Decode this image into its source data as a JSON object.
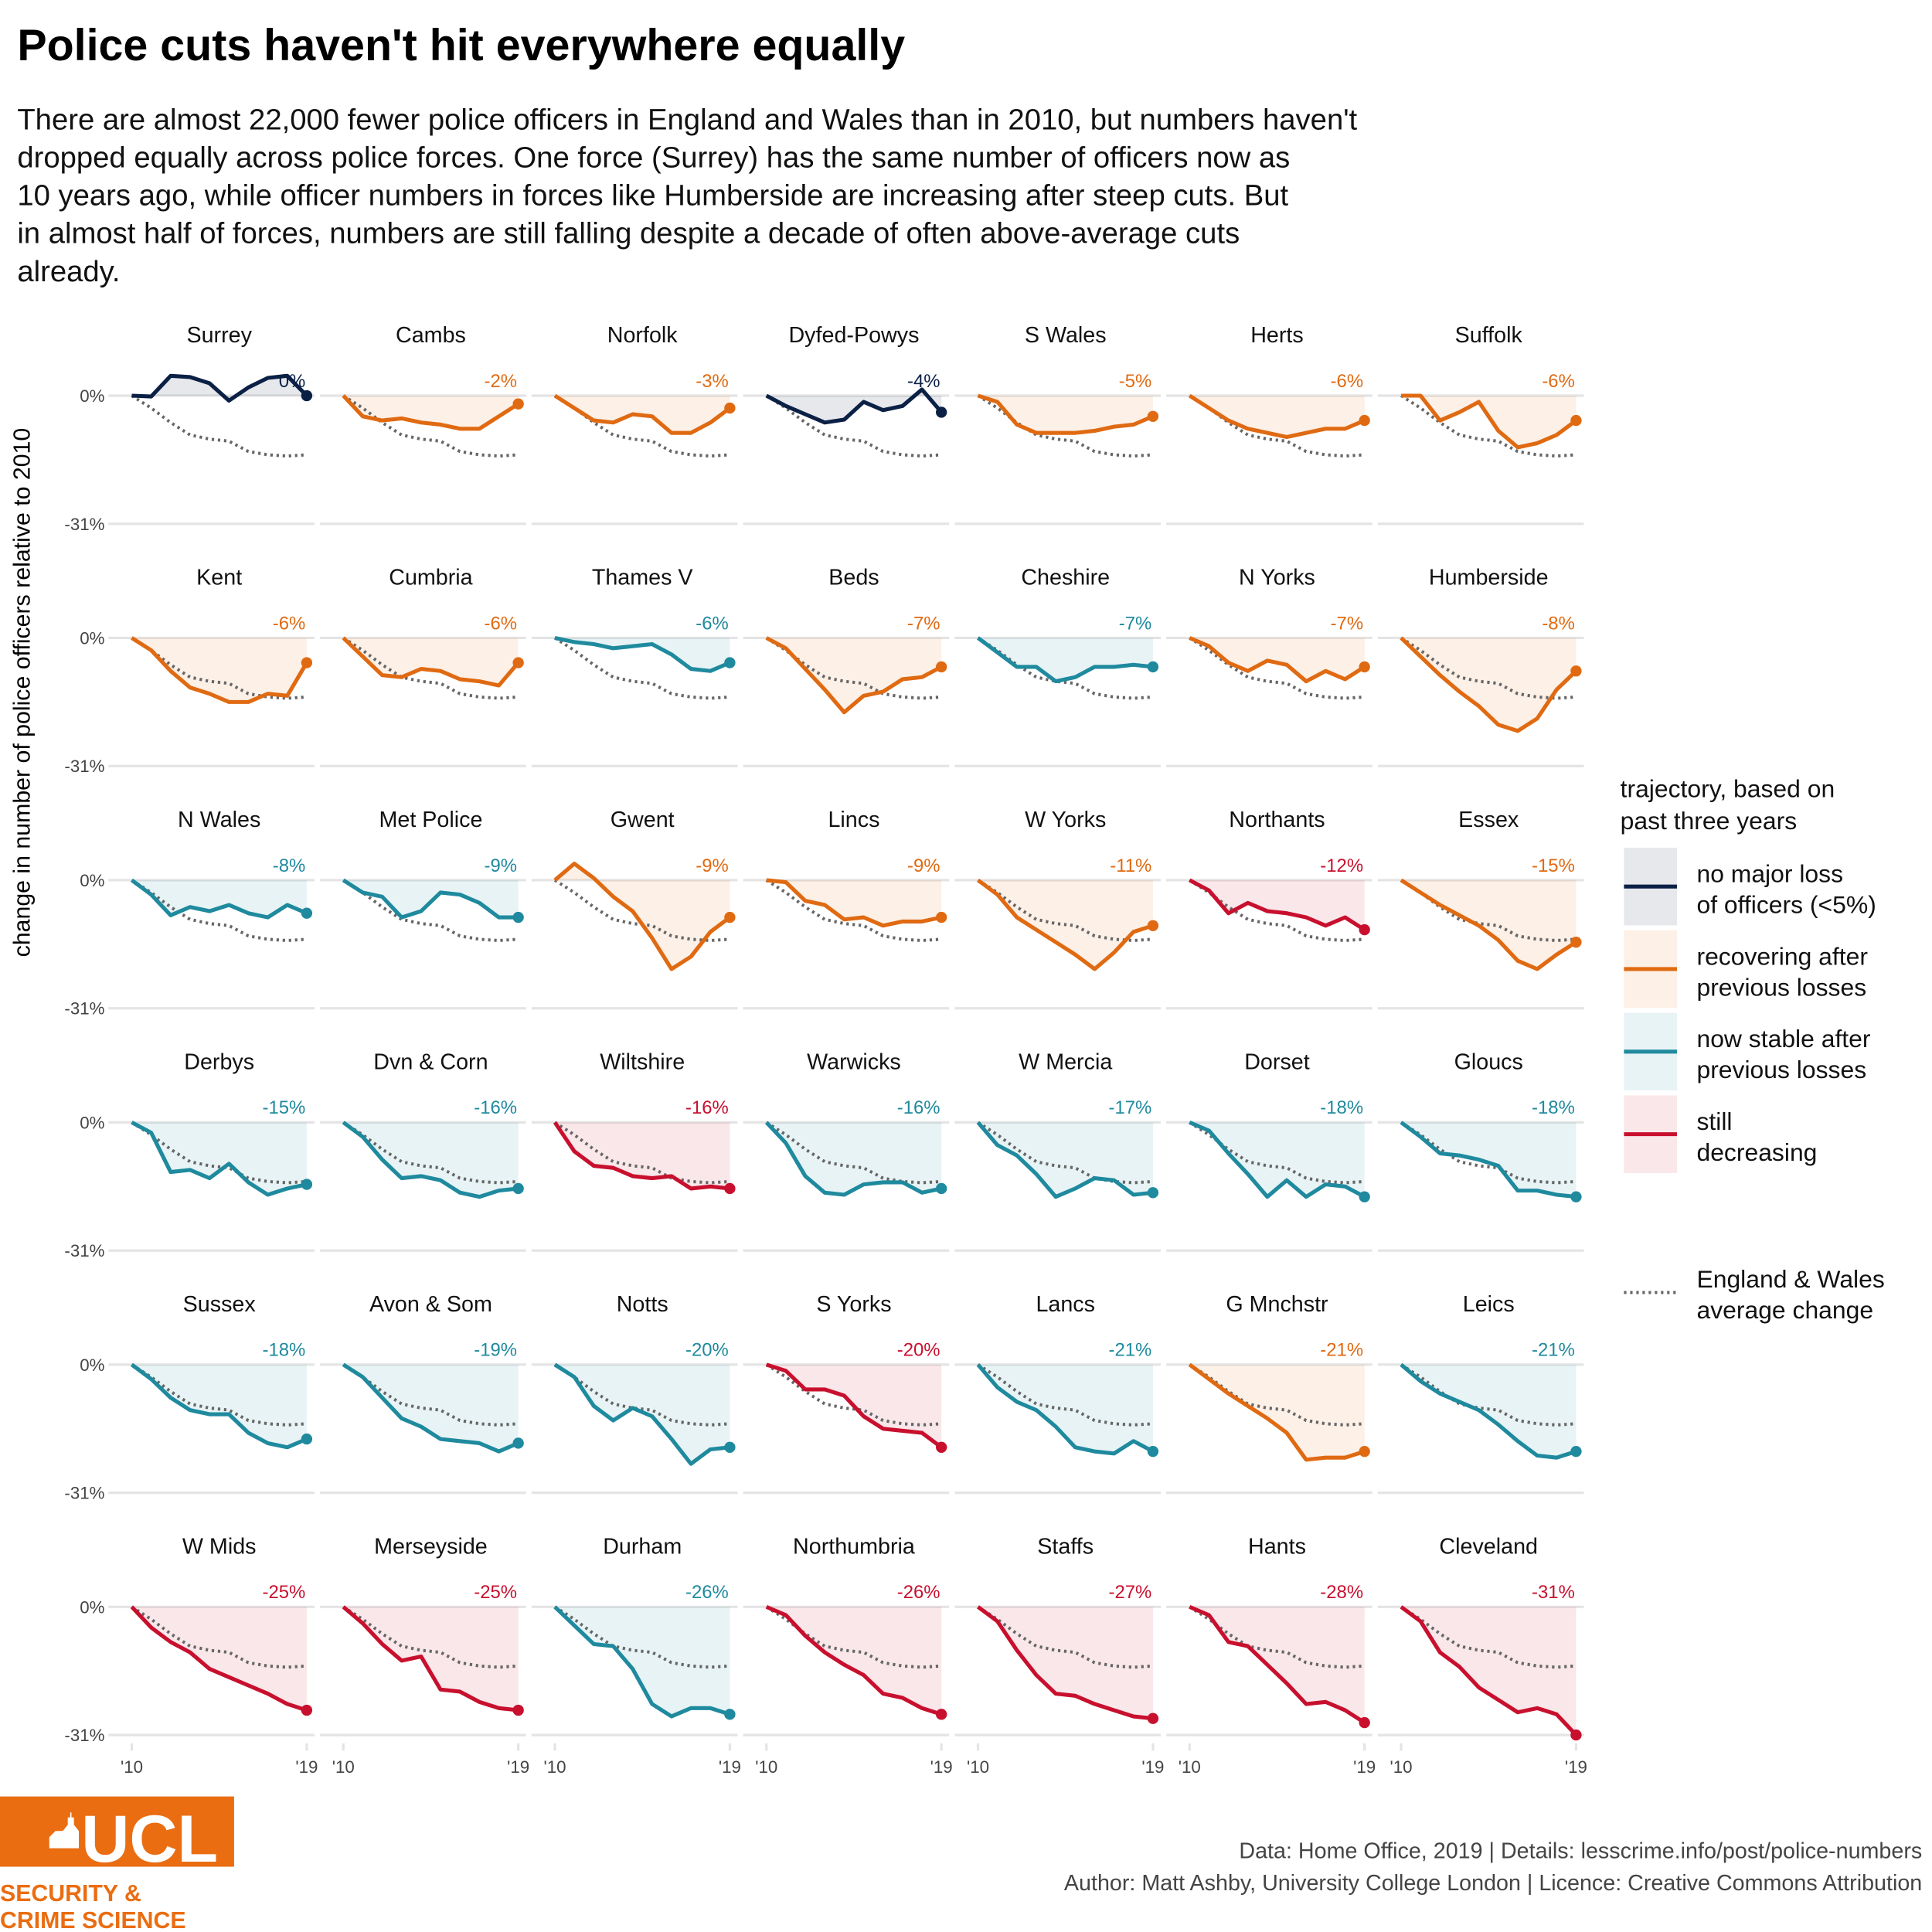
{
  "chart_data": {
    "type": "line",
    "title": "Police cuts haven't hit everywhere equally",
    "subtitle": [
      "There are almost 22,000 fewer police officers in England and Wales than in 2010, but numbers haven't",
      "dropped equally across police forces. One force (Surrey) has the same number of officers now as",
      "10 years ago, while officer numbers in forces like Humberside are increasing after steep cuts. But",
      "in almost half of forces, numbers are still falling despite a decade of often above-average cuts",
      "already."
    ],
    "y_label": "change in number of police officers relative to 2010",
    "x": [
      2010,
      2011,
      2012,
      2013,
      2014,
      2015,
      2016,
      2017,
      2018,
      2019
    ],
    "xlim": [
      2008.8,
      2019.4
    ],
    "xticks": [
      {
        "value": 2010,
        "label": "'10"
      },
      {
        "value": 2019,
        "label": "'19"
      }
    ],
    "ylim": [
      -33,
      6
    ],
    "yticks": [
      {
        "value": 0,
        "label": "0%"
      },
      {
        "value": -31,
        "label": "-31%"
      }
    ],
    "grid": true,
    "average": {
      "name": [
        "England & Wales",
        "average change"
      ],
      "color": "#666666",
      "values": [
        0,
        -3,
        -6.5,
        -9.5,
        -10.5,
        -11,
        -13.5,
        -14.3,
        -14.6,
        -14.3
      ]
    },
    "legend_title": [
      "trajectory, based on",
      "past three years"
    ],
    "legend": [
      {
        "name": [
          "no major loss",
          "of officers (<5%)"
        ],
        "color": "#0b2045"
      },
      {
        "name": [
          "recovering after",
          "previous losses"
        ],
        "color": "#e06a12"
      },
      {
        "name": [
          "now stable after",
          "previous losses"
        ],
        "color": "#1f8a9e"
      },
      {
        "name": [
          "still",
          "decreasing"
        ],
        "color": "#c8102e"
      }
    ],
    "panels": [
      {
        "title": "Surrey",
        "color": "#0b2045",
        "value_label": "0%",
        "values": [
          0,
          -0.2,
          4.8,
          4.5,
          3,
          -1.2,
          2,
          4.3,
          4.8,
          0
        ]
      },
      {
        "title": "Cambs",
        "color": "#e06a12",
        "value_label": "-2%",
        "values": [
          0,
          -5,
          -6,
          -5.5,
          -6.5,
          -7,
          -8,
          -8,
          -5,
          -2
        ]
      },
      {
        "title": "Norfolk",
        "color": "#e06a12",
        "value_label": "-3%",
        "values": [
          0,
          -3,
          -6,
          -6.5,
          -4.5,
          -5,
          -9,
          -9,
          -6.5,
          -3
        ]
      },
      {
        "title": "Dyfed-Powys",
        "color": "#0b2045",
        "value_label": "-4%",
        "values": [
          0,
          -2.5,
          -4.5,
          -6.5,
          -5.8,
          -1.5,
          -3.5,
          -2.5,
          1.5,
          -4
        ]
      },
      {
        "title": "S Wales",
        "color": "#e06a12",
        "value_label": "-5%",
        "values": [
          0,
          -1.5,
          -7,
          -9,
          -9,
          -9,
          -8.5,
          -7.5,
          -7,
          -5
        ]
      },
      {
        "title": "Herts",
        "color": "#e06a12",
        "value_label": "-6%",
        "values": [
          0,
          -3,
          -6,
          -8,
          -9,
          -10,
          -9,
          -8,
          -8,
          -6
        ]
      },
      {
        "title": "Suffolk",
        "color": "#e06a12",
        "value_label": "-6%",
        "values": [
          0,
          0,
          -6,
          -4,
          -1.5,
          -8.5,
          -12.5,
          -11.5,
          -9.5,
          -6
        ]
      },
      {
        "title": "Kent",
        "color": "#e06a12",
        "value_label": "-6%",
        "values": [
          0,
          -3,
          -8,
          -12,
          -13.5,
          -15.5,
          -15.5,
          -13.5,
          -14,
          -6
        ]
      },
      {
        "title": "Cumbria",
        "color": "#e06a12",
        "value_label": "-6%",
        "values": [
          0,
          -4.5,
          -9,
          -9.5,
          -7.5,
          -8,
          -10,
          -10.5,
          -11.5,
          -6
        ]
      },
      {
        "title": "Thames V",
        "color": "#1f8a9e",
        "value_label": "-6%",
        "values": [
          0,
          -1,
          -1.5,
          -2.5,
          -2,
          -1.5,
          -4,
          -7.5,
          -8,
          -6
        ]
      },
      {
        "title": "Beds",
        "color": "#e06a12",
        "value_label": "-7%",
        "values": [
          0,
          -2.5,
          -7.5,
          -12.5,
          -18,
          -14,
          -13,
          -10,
          -9.5,
          -7
        ]
      },
      {
        "title": "Cheshire",
        "color": "#1f8a9e",
        "value_label": "-7%",
        "values": [
          0,
          -3.5,
          -7,
          -7,
          -10.5,
          -9.5,
          -7,
          -7,
          -6.5,
          -7
        ]
      },
      {
        "title": "N Yorks",
        "color": "#e06a12",
        "value_label": "-7%",
        "values": [
          0,
          -2,
          -6,
          -8,
          -5.5,
          -6.5,
          -10.5,
          -8,
          -10,
          -7
        ]
      },
      {
        "title": "Humberside",
        "color": "#e06a12",
        "value_label": "-8%",
        "values": [
          0,
          -4.5,
          -9,
          -13,
          -16.5,
          -21,
          -22.5,
          -19.5,
          -12.5,
          -8
        ]
      },
      {
        "title": "N Wales",
        "color": "#1f8a9e",
        "value_label": "-8%",
        "values": [
          0,
          -3.5,
          -8.5,
          -6.5,
          -7.5,
          -6,
          -8,
          -9,
          -6,
          -8
        ]
      },
      {
        "title": "Met Police",
        "color": "#1f8a9e",
        "value_label": "-9%",
        "values": [
          0,
          -3,
          -4,
          -9,
          -7.5,
          -3,
          -3.5,
          -5.5,
          -9,
          -9
        ]
      },
      {
        "title": "Gwent",
        "color": "#e06a12",
        "value_label": "-9%",
        "values": [
          0,
          4,
          0.5,
          -4,
          -7.5,
          -14,
          -21.5,
          -18.5,
          -12.5,
          -9
        ]
      },
      {
        "title": "Lincs",
        "color": "#e06a12",
        "value_label": "-9%",
        "values": [
          0,
          -0.5,
          -5,
          -6,
          -9.5,
          -9,
          -11,
          -10,
          -10,
          -9
        ]
      },
      {
        "title": "W Yorks",
        "color": "#e06a12",
        "value_label": "-11%",
        "values": [
          0,
          -3.5,
          -9,
          -12,
          -15,
          -18,
          -21.5,
          -17.5,
          -12.5,
          -11
        ]
      },
      {
        "title": "Northants",
        "color": "#c8102e",
        "value_label": "-12%",
        "values": [
          0,
          -2.5,
          -8,
          -5.5,
          -7.5,
          -8,
          -9,
          -11,
          -9,
          -12
        ]
      },
      {
        "title": "Essex",
        "color": "#e06a12",
        "value_label": "-15%",
        "values": [
          0,
          -3,
          -6,
          -8.5,
          -11,
          -14.5,
          -19.5,
          -21.5,
          -18,
          -15
        ]
      },
      {
        "title": "Derbys",
        "color": "#1f8a9e",
        "value_label": "-15%",
        "values": [
          0,
          -2.5,
          -12,
          -11.5,
          -13.5,
          -10,
          -14.5,
          -17.5,
          -16,
          -15
        ]
      },
      {
        "title": "Dvn & Corn",
        "color": "#1f8a9e",
        "value_label": "-16%",
        "values": [
          0,
          -3.5,
          -9,
          -13.5,
          -13,
          -14,
          -17,
          -18,
          -16.5,
          -16
        ]
      },
      {
        "title": "Wiltshire",
        "color": "#c8102e",
        "value_label": "-16%",
        "values": [
          0,
          -7,
          -10.5,
          -11,
          -13,
          -13.5,
          -13,
          -16,
          -15.5,
          -16
        ]
      },
      {
        "title": "Warwicks",
        "color": "#1f8a9e",
        "value_label": "-16%",
        "values": [
          0,
          -5,
          -13,
          -17,
          -17.5,
          -15,
          -14.5,
          -14.5,
          -17,
          -16
        ]
      },
      {
        "title": "W Mercia",
        "color": "#1f8a9e",
        "value_label": "-17%",
        "values": [
          0,
          -5.5,
          -8,
          -12.5,
          -18,
          -16,
          -13.5,
          -14,
          -17.5,
          -17
        ]
      },
      {
        "title": "Dorset",
        "color": "#1f8a9e",
        "value_label": "-18%",
        "values": [
          0,
          -2,
          -7.5,
          -12.5,
          -18,
          -14,
          -18,
          -15,
          -15.5,
          -18
        ]
      },
      {
        "title": "Gloucs",
        "color": "#1f8a9e",
        "value_label": "-18%",
        "values": [
          0,
          -3.5,
          -7.5,
          -8,
          -9,
          -10.5,
          -16.5,
          -16.5,
          -17.5,
          -18
        ]
      },
      {
        "title": "Sussex",
        "color": "#1f8a9e",
        "value_label": "-18%",
        "values": [
          0,
          -3.5,
          -8,
          -11,
          -12,
          -12,
          -16.5,
          -19,
          -20,
          -18
        ]
      },
      {
        "title": "Avon & Som",
        "color": "#1f8a9e",
        "value_label": "-19%",
        "values": [
          0,
          -3,
          -8,
          -13,
          -15,
          -18,
          -18.5,
          -19,
          -21,
          -19
        ]
      },
      {
        "title": "Notts",
        "color": "#1f8a9e",
        "value_label": "-20%",
        "values": [
          0,
          -3,
          -10,
          -13.5,
          -10.5,
          -12.5,
          -18,
          -24,
          -20.5,
          -20
        ]
      },
      {
        "title": "S Yorks",
        "color": "#c8102e",
        "value_label": "-20%",
        "values": [
          0,
          -1.5,
          -6,
          -6,
          -7.5,
          -12.5,
          -15.5,
          -16,
          -16.5,
          -20
        ]
      },
      {
        "title": "Lancs",
        "color": "#1f8a9e",
        "value_label": "-21%",
        "values": [
          0,
          -5.5,
          -9,
          -11,
          -15,
          -20,
          -21,
          -21.5,
          -18.5,
          -21
        ]
      },
      {
        "title": "G Mnchstr",
        "color": "#e06a12",
        "value_label": "-21%",
        "values": [
          0,
          -3.5,
          -7,
          -10,
          -13,
          -16.5,
          -23,
          -22.5,
          -22.5,
          -21
        ]
      },
      {
        "title": "Leics",
        "color": "#1f8a9e",
        "value_label": "-21%",
        "values": [
          0,
          -4,
          -7,
          -9,
          -11,
          -14.5,
          -18.5,
          -22,
          -22.5,
          -21
        ]
      },
      {
        "title": "W Mids",
        "color": "#c8102e",
        "value_label": "-25%",
        "values": [
          0,
          -5,
          -8.5,
          -11,
          -15,
          -17,
          -19,
          -21,
          -23.5,
          -25
        ]
      },
      {
        "title": "Merseyside",
        "color": "#c8102e",
        "value_label": "-25%",
        "values": [
          0,
          -4,
          -9,
          -13,
          -12,
          -20,
          -20.5,
          -23,
          -24.5,
          -25
        ]
      },
      {
        "title": "Durham",
        "color": "#1f8a9e",
        "value_label": "-26%",
        "values": [
          0,
          -4.5,
          -9,
          -9.5,
          -15,
          -23.5,
          -26.5,
          -24.5,
          -24.5,
          -26
        ]
      },
      {
        "title": "Northumbria",
        "color": "#c8102e",
        "value_label": "-26%",
        "values": [
          0,
          -2,
          -7,
          -11,
          -14,
          -16.5,
          -21,
          -22,
          -24.5,
          -26
        ]
      },
      {
        "title": "Staffs",
        "color": "#c8102e",
        "value_label": "-27%",
        "values": [
          0,
          -3.5,
          -10.5,
          -16.5,
          -21,
          -21.5,
          -23.5,
          -25,
          -26.5,
          -27
        ]
      },
      {
        "title": "Hants",
        "color": "#c8102e",
        "value_label": "-28%",
        "values": [
          0,
          -2,
          -8.5,
          -9.5,
          -14,
          -18.5,
          -23.5,
          -23,
          -25,
          -28
        ]
      },
      {
        "title": "Cleveland",
        "color": "#c8102e",
        "value_label": "-31%",
        "values": [
          0,
          -3.5,
          -11,
          -14.5,
          -19.5,
          -22.5,
          -25.5,
          -24.5,
          -26,
          -31
        ]
      }
    ],
    "caption": [
      "Data: Home Office, 2019 |  Details: lesscrime.info/post/police-numbers",
      "Author: Matt Ashby, University College London |  Licence: Creative Commons Attribution"
    ],
    "logo": {
      "name": "UCL",
      "lines": [
        "SECURITY &",
        "CRIME SCIENCE"
      ]
    }
  }
}
